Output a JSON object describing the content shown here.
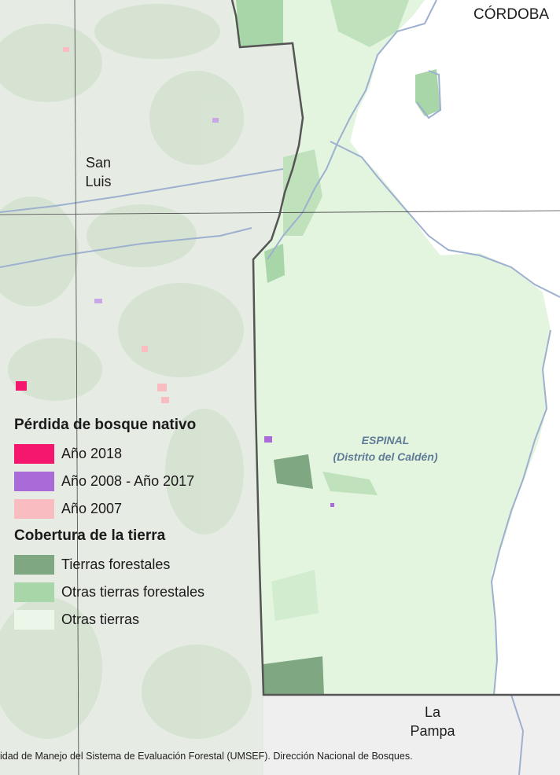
{
  "map": {
    "labels": {
      "cordoba": "CÓRDOBA",
      "san_luis": "San\nLuis",
      "la_pampa": "La\nPampa",
      "ecoregion_name": "ESPINAL",
      "ecoregion_district": "(Distrito del Caldén)"
    },
    "colors": {
      "outside_area": "#e9ece7",
      "province_fill": "#e3f5df",
      "forest": "#7fa882",
      "other_forest": "#a9d6a8",
      "river": "#9db0cf",
      "boundary": "#555555",
      "loss_2018": "#f5166e",
      "loss_2008_2017": "#a86bd7",
      "loss_2007": "#f9bcc0"
    }
  },
  "legend": {
    "loss_title": "Pérdida de bosque nativo",
    "loss_items": [
      {
        "label": "Año 2018",
        "color": "#f5166e"
      },
      {
        "label": "Año 2008 - Año 2017",
        "color": "#a86bd7"
      },
      {
        "label": "Año 2007",
        "color": "#f9bcc0"
      }
    ],
    "cover_title": "Cobertura de la tierra",
    "cover_items": [
      {
        "label": "Tierras forestales",
        "color": "#7fa882"
      },
      {
        "label": "Otras tierras forestales",
        "color": "#a9d6a8"
      },
      {
        "label": "Otras tierras",
        "color": "#ebf7e8"
      }
    ]
  },
  "source": "idad de Manejo del Sistema de Evaluación Forestal (UMSEF). Dirección Nacional de Bosques."
}
